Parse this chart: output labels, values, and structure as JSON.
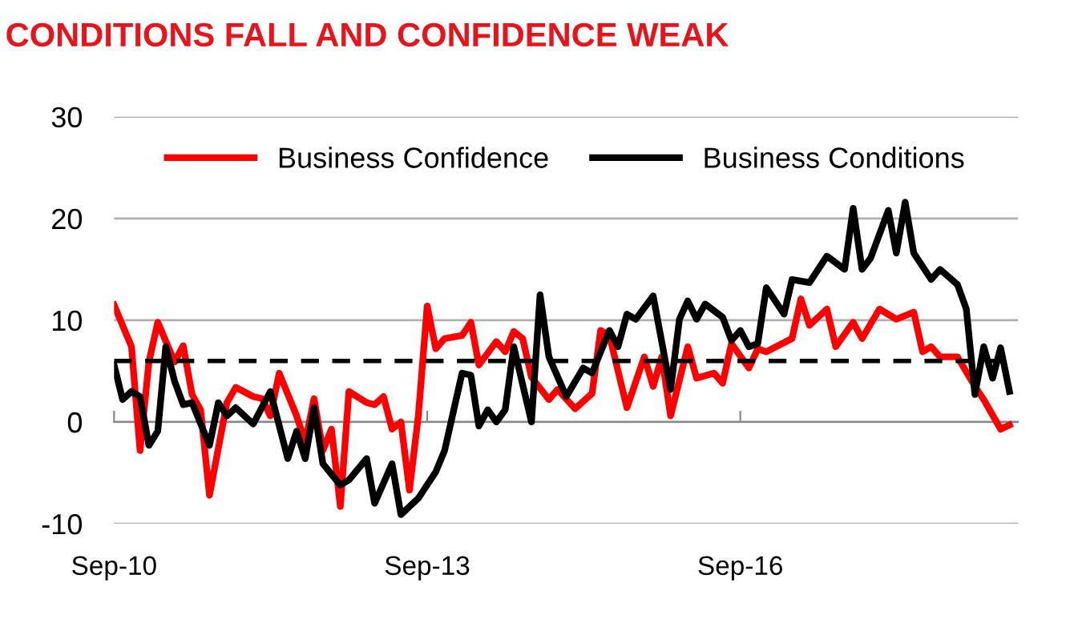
{
  "chart_data": {
    "type": "line",
    "title": "CONDITIONS FALL AND CONFIDENCE WEAK",
    "xlim": [
      "2010-09",
      "2019-05"
    ],
    "xticks": [
      {
        "value": "2010-09",
        "label": "Sep-10"
      },
      {
        "value": "2013-09",
        "label": "Sep-13"
      },
      {
        "value": "2016-09",
        "label": "Sep-16"
      }
    ],
    "ylim": [
      -10,
      30
    ],
    "yticks": [
      -10,
      0,
      10,
      20,
      30
    ],
    "grid": "y",
    "legend": "top",
    "line_style": "solid",
    "marker": "none",
    "ref_lines": [
      {
        "axis": "y",
        "value": 6,
        "color": "#000000",
        "line_style": "dashed"
      }
    ],
    "series": [
      {
        "name": "Business Confidence",
        "color": "#ff0000",
        "x": [
          "2010-09",
          "2010-11",
          "2010-12",
          "2011-01",
          "2011-02",
          "2011-04",
          "2011-05",
          "2011-06",
          "2011-07",
          "2011-08",
          "2011-10",
          "2011-11",
          "2012-01",
          "2012-02",
          "2012-03",
          "2012-04",
          "2012-06",
          "2012-07",
          "2012-08",
          "2012-09",
          "2012-10",
          "2012-11",
          "2012-12",
          "2013-02",
          "2013-03",
          "2013-04",
          "2013-05",
          "2013-06",
          "2013-07",
          "2013-08",
          "2013-09",
          "2013-10",
          "2013-11",
          "2014-01",
          "2014-02",
          "2014-03",
          "2014-05",
          "2014-06",
          "2014-07",
          "2014-08",
          "2014-09",
          "2014-11",
          "2014-12",
          "2015-02",
          "2015-04",
          "2015-05",
          "2015-06",
          "2015-08",
          "2015-10",
          "2015-11",
          "2015-12",
          "2016-01",
          "2016-03",
          "2016-04",
          "2016-06",
          "2016-07",
          "2016-08",
          "2016-10",
          "2016-11",
          "2016-12",
          "2017-03",
          "2017-04",
          "2017-05",
          "2017-07",
          "2017-08",
          "2017-10",
          "2017-11",
          "2018-01",
          "2018-03",
          "2018-05",
          "2018-06",
          "2018-07",
          "2018-08",
          "2018-10",
          "2018-12",
          "2019-01",
          "2019-03",
          "2019-04"
        ],
        "values": [
          11.5,
          7.4,
          -2.8,
          5.9,
          9.8,
          5.9,
          7.5,
          2.7,
          1.2,
          -7.2,
          1.9,
          3.4,
          2.5,
          2.3,
          0.6,
          4.8,
          0.6,
          -2.0,
          2.3,
          -2.8,
          -0.7,
          -8.3,
          3.0,
          1.9,
          1.7,
          2.5,
          -0.7,
          0.0,
          -6.7,
          0.6,
          11.4,
          7.2,
          8.2,
          8.5,
          9.8,
          5.6,
          7.9,
          6.9,
          8.9,
          8.2,
          4.4,
          2.2,
          3.2,
          1.3,
          2.8,
          9.0,
          8.5,
          1.4,
          6.4,
          3.5,
          6.4,
          0.6,
          7.4,
          4.3,
          4.8,
          3.8,
          7.7,
          5.3,
          7.2,
          6.9,
          8.2,
          12.1,
          9.5,
          11.1,
          7.4,
          9.8,
          8.2,
          11.1,
          10.1,
          10.8,
          6.9,
          7.4,
          6.4,
          6.4,
          3.5,
          2.2,
          -0.7,
          -0.3
        ]
      },
      {
        "name": "Business Conditions",
        "color": "#000000",
        "x": [
          "2010-09",
          "2010-10",
          "2010-11",
          "2010-12",
          "2011-01",
          "2011-02",
          "2011-03",
          "2011-04",
          "2011-05",
          "2011-06",
          "2011-08",
          "2011-09",
          "2011-10",
          "2011-11",
          "2012-01",
          "2012-03",
          "2012-05",
          "2012-06",
          "2012-07",
          "2012-08",
          "2012-09",
          "2012-11",
          "2012-12",
          "2013-02",
          "2013-03",
          "2013-05",
          "2013-06",
          "2013-08",
          "2013-10",
          "2013-11",
          "2014-01",
          "2014-02",
          "2014-03",
          "2014-04",
          "2014-05",
          "2014-06",
          "2014-07",
          "2014-09",
          "2014-10",
          "2014-11",
          "2015-01",
          "2015-03",
          "2015-04",
          "2015-06",
          "2015-07",
          "2015-08",
          "2015-09",
          "2015-11",
          "2016-01",
          "2016-02",
          "2016-03",
          "2016-04",
          "2016-05",
          "2016-07",
          "2016-08",
          "2016-09",
          "2016-10",
          "2016-11",
          "2016-12",
          "2017-02",
          "2017-03",
          "2017-05",
          "2017-07",
          "2017-09",
          "2017-10",
          "2017-11",
          "2017-12",
          "2018-02",
          "2018-03",
          "2018-04",
          "2018-05",
          "2018-07",
          "2018-08",
          "2018-10",
          "2018-11",
          "2018-12",
          "2019-01",
          "2019-02",
          "2019-03",
          "2019-04"
        ],
        "values": [
          5.6,
          2.2,
          3.0,
          2.5,
          -2.3,
          -0.9,
          7.4,
          4.0,
          1.7,
          1.9,
          -2.3,
          1.9,
          0.6,
          1.4,
          -0.2,
          3.0,
          -3.6,
          -0.9,
          -3.6,
          1.4,
          -4.1,
          -6.2,
          -5.7,
          -3.6,
          -8.0,
          -4.1,
          -9.1,
          -7.5,
          -4.9,
          -2.8,
          4.8,
          4.6,
          -0.4,
          1.2,
          0.0,
          1.2,
          7.4,
          0.0,
          12.5,
          6.4,
          2.5,
          5.3,
          4.8,
          9.0,
          7.4,
          10.6,
          10.1,
          12.4,
          3.2,
          10.1,
          11.9,
          10.1,
          11.6,
          10.3,
          8.0,
          9.0,
          7.4,
          7.7,
          13.2,
          10.6,
          14.0,
          13.7,
          16.3,
          15.0,
          21.0,
          15.0,
          16.1,
          20.8,
          16.6,
          21.6,
          16.6,
          14.0,
          15.0,
          13.5,
          11.1,
          2.7,
          7.4,
          4.3,
          7.3,
          3.0
        ]
      }
    ]
  }
}
